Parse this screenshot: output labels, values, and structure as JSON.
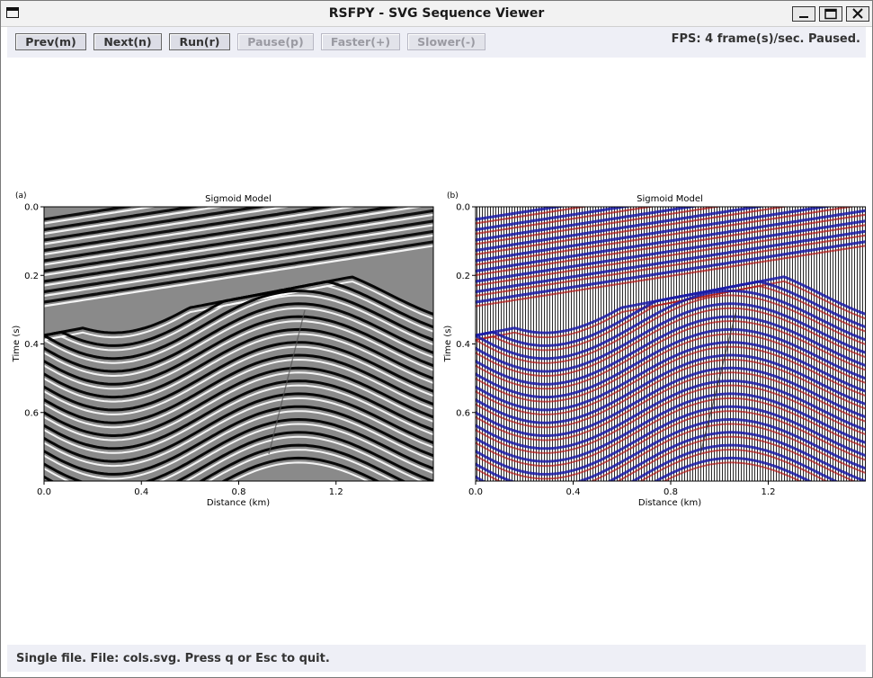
{
  "window": {
    "title": "RSFPY - SVG Sequence Viewer",
    "controls": [
      "minimize",
      "maximize",
      "close"
    ]
  },
  "toolbar": {
    "buttons": [
      {
        "label": "Prev(m)",
        "enabled": true
      },
      {
        "label": "Next(n)",
        "enabled": true
      },
      {
        "label": "Run(r)",
        "enabled": true
      },
      {
        "label": "Pause(p)",
        "enabled": false
      },
      {
        "label": "Faster(+)",
        "enabled": false
      },
      {
        "label": "Slower(-)",
        "enabled": false
      }
    ],
    "fps_status": "FPS: 4 frame(s)/sec. Paused."
  },
  "figure": {
    "panels": [
      {
        "tag": "(a)",
        "title": "Sigmoid Model",
        "xlabel": "Distance (km)",
        "ylabel": "Time (s)",
        "colormap": "gray"
      },
      {
        "tag": "(b)",
        "title": "Sigmoid Model",
        "xlabel": "Distance (km)",
        "ylabel": "Time (s)",
        "colormap": "wiggle-variable-area red/blue"
      }
    ]
  },
  "chart_data": [
    {
      "type": "heatmap",
      "title": "Sigmoid Model",
      "xlabel": "Distance (km)",
      "ylabel": "Time (s)",
      "xlim": [
        0.0,
        1.6
      ],
      "ylim": [
        0.8,
        0.0
      ],
      "x_ticks": [
        0.0,
        0.4,
        0.8,
        1.2
      ],
      "y_ticks": [
        0.0,
        0.2,
        0.4,
        0.6
      ],
      "x_tick_labels": [
        "0.0",
        "0.4",
        "0.8",
        "1.2"
      ],
      "y_tick_labels": [
        "0.0",
        "0.2",
        "0.4",
        "0.6"
      ],
      "colors": {
        "positive": "#000000",
        "negative": "#ffffff",
        "background": "#808080"
      }
    },
    {
      "type": "heatmap",
      "title": "Sigmoid Model",
      "xlabel": "Distance (km)",
      "ylabel": "Time (s)",
      "xlim": [
        0.0,
        1.6
      ],
      "ylim": [
        0.8,
        0.0
      ],
      "x_ticks": [
        0.0,
        0.4,
        0.8,
        1.2
      ],
      "y_ticks": [
        0.0,
        0.2,
        0.4,
        0.6
      ],
      "x_tick_labels": [
        "0.0",
        "0.4",
        "0.8",
        "1.2"
      ],
      "y_tick_labels": [
        "0.0",
        "0.2",
        "0.4",
        "0.6"
      ],
      "colors": {
        "positive": "#1a1aa8",
        "negative": "#b01515",
        "traces": "#000000"
      }
    }
  ],
  "status": {
    "text": "Single file. File: cols.svg. Press q or Esc to quit."
  }
}
